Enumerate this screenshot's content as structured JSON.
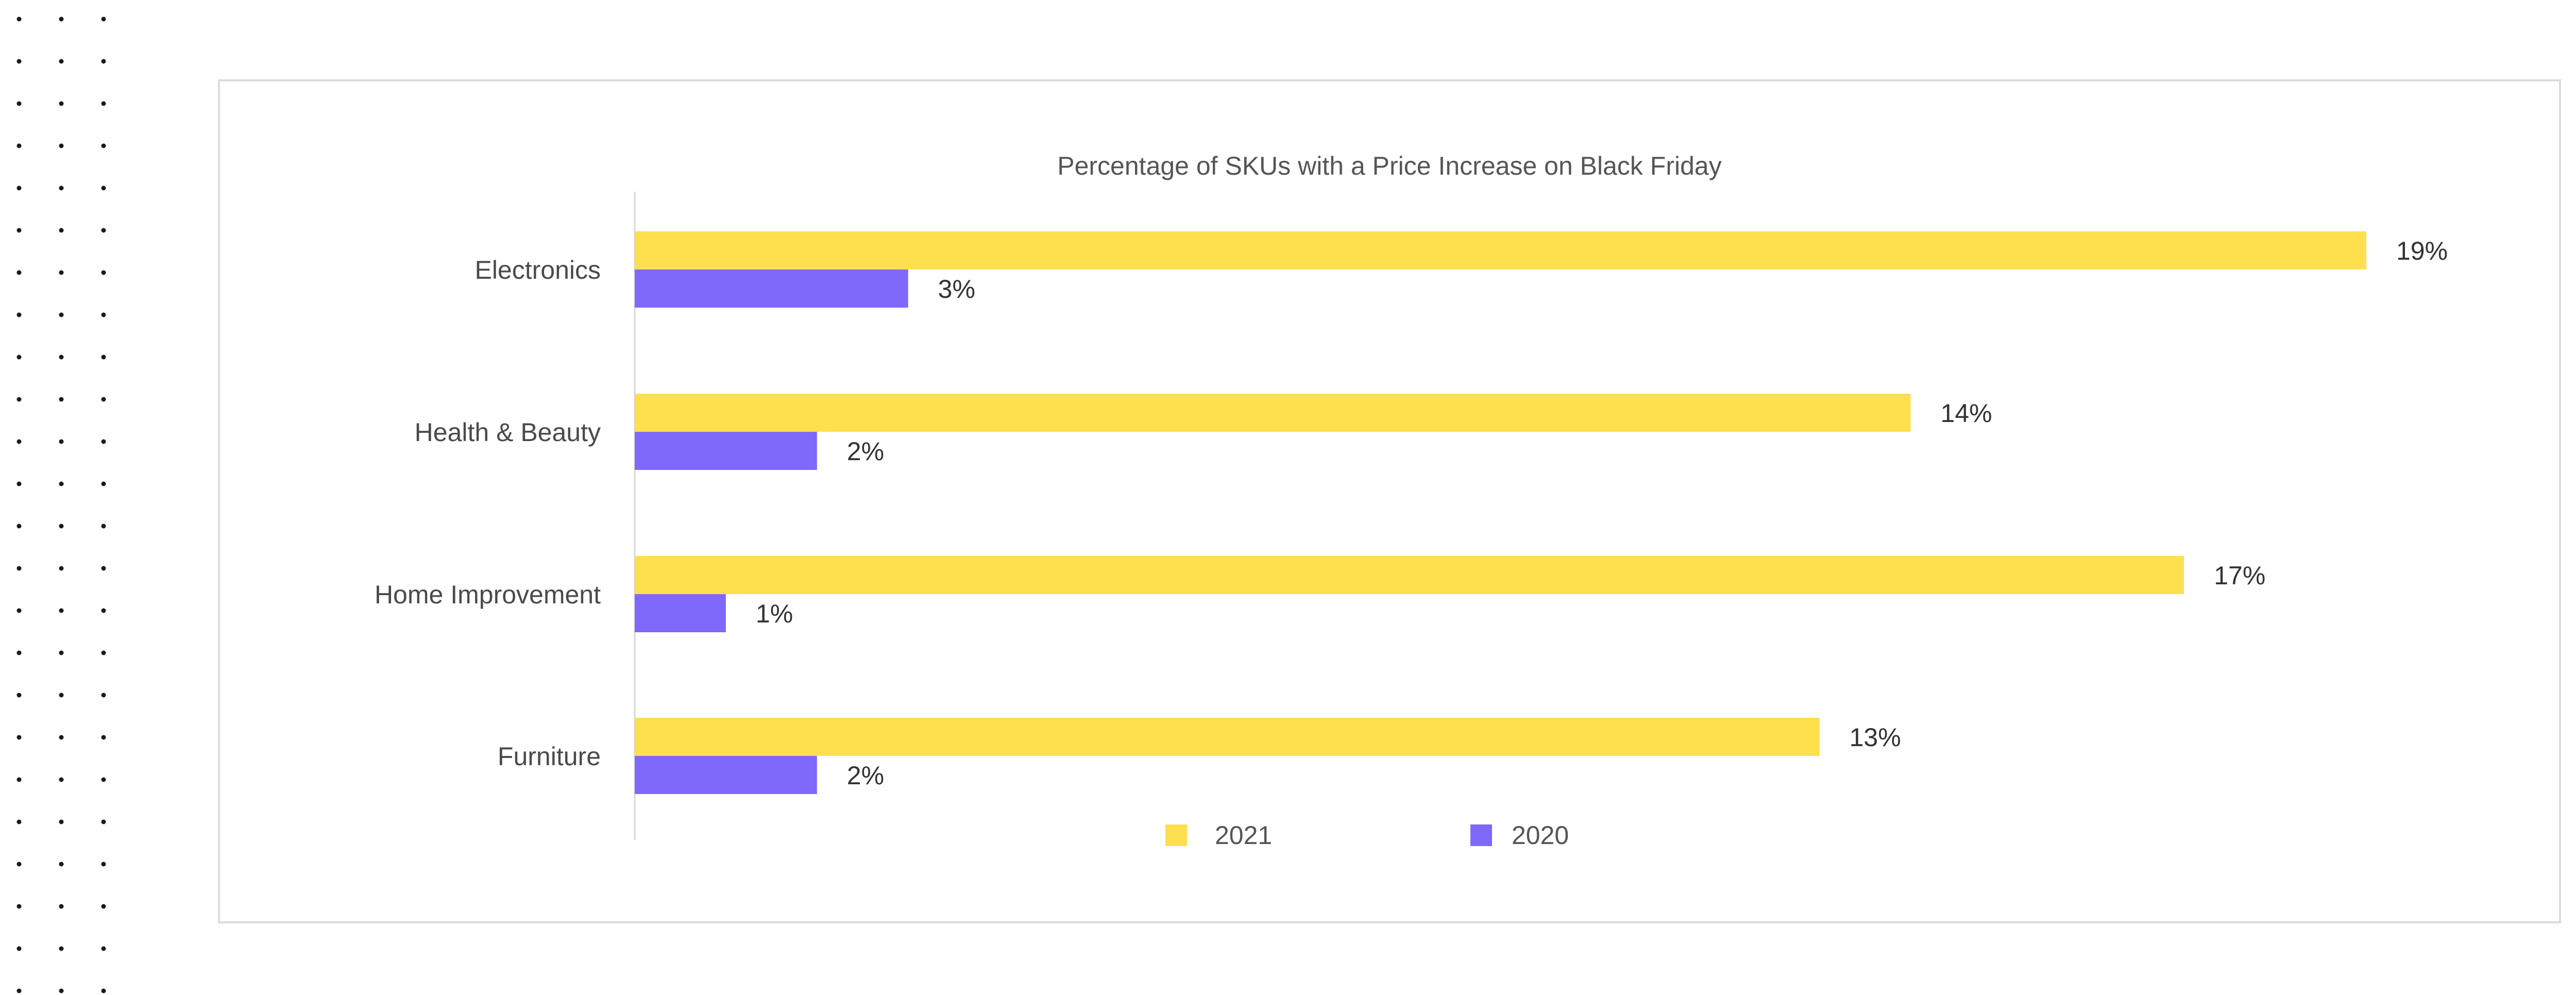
{
  "colors": {
    "series_2021": "#FEDF4E",
    "series_2020": "#7F69FB",
    "frame_border": "#DCDCDC",
    "axis_line": "#D8D8D8",
    "dot_color": "#1A1A1A"
  },
  "chart_data": {
    "type": "bar",
    "orientation": "horizontal",
    "title": "Percentage of SKUs with a Price Increase on Black Friday",
    "xlabel": "",
    "ylabel": "",
    "categories": [
      "Electronics",
      "Health & Beauty",
      "Home Improvement",
      "Furniture"
    ],
    "series": [
      {
        "name": "2021",
        "values": [
          19,
          14,
          17,
          13
        ],
        "labels": [
          "19%",
          "14%",
          "17%",
          "13%"
        ]
      },
      {
        "name": "2020",
        "values": [
          3,
          2,
          1,
          2
        ],
        "labels": [
          "3%",
          "2%",
          "1%",
          "2%"
        ]
      }
    ],
    "xlim": [
      0,
      19
    ],
    "grid": false,
    "legend_position": "bottom"
  }
}
